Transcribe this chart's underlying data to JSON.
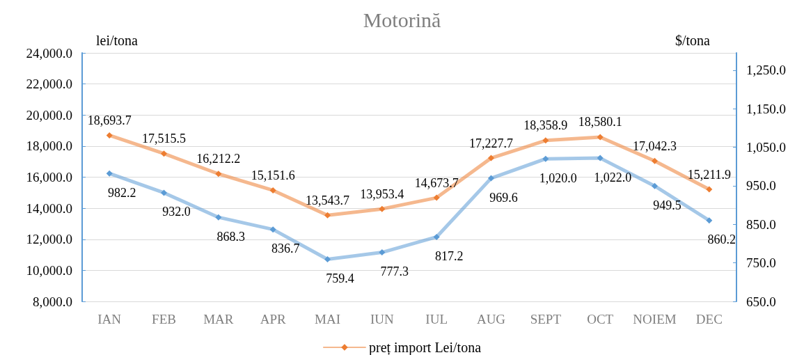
{
  "chart_data": {
    "type": "line",
    "title": "Motorină",
    "ylabel": "lei/tona",
    "y2label": "$/tona",
    "categories": [
      "IAN",
      "FEB",
      "MAR",
      "APR",
      "MAI",
      "IUN",
      "IUL",
      "AUG",
      "SEPT",
      "OCT",
      "NOIEM",
      "DEC"
    ],
    "series": [
      {
        "name": "preț import Lei/tona",
        "color": "#ed7d31",
        "values": [
          18693.7,
          17515.5,
          16212.2,
          15151.6,
          13543.7,
          13953.4,
          14673.7,
          17227.7,
          18358.9,
          18580.1,
          17042.3,
          15211.9
        ],
        "value_labels": [
          "18,693.7",
          "17,515.5",
          "16,212.2",
          "15,151.6",
          "13,543.7",
          "13,953.4",
          "14,673.7",
          "17,227.7",
          "18,358.9",
          "18,580.1",
          "17,042.3",
          "15,211.9"
        ]
      },
      {
        "color": "#5b9bd5",
        "axis": "y2",
        "values": [
          982.2,
          932.0,
          868.3,
          836.7,
          759.4,
          777.3,
          817.2,
          969.6,
          1020.0,
          1022.0,
          949.5,
          860.2
        ],
        "value_labels": [
          "982.2",
          "932.0",
          "868.3",
          "836.7",
          "759.4",
          "777.3",
          "817.2",
          "969.6",
          "1,020.0",
          "1,022.0",
          "949.5",
          "860.2"
        ]
      }
    ],
    "ylim": [
      8000,
      24000
    ],
    "yticks": [
      {
        "value": 8000,
        "label": "8,000.0"
      },
      {
        "value": 10000,
        "label": "10,000.0"
      },
      {
        "value": 12000,
        "label": "12,000.0"
      },
      {
        "value": 14000,
        "label": "14,000.0"
      },
      {
        "value": 16000,
        "label": "16,000.0"
      },
      {
        "value": 18000,
        "label": "18,000.0"
      },
      {
        "value": 20000,
        "label": "20,000.0"
      },
      {
        "value": 22000,
        "label": "22,000.0"
      },
      {
        "value": 24000,
        "label": "24,000.0"
      }
    ],
    "y2lim": [
      650,
      1295
    ],
    "y2ticks": [
      {
        "value": 650,
        "label": "650.0"
      },
      {
        "value": 750,
        "label": "750.0"
      },
      {
        "value": 850,
        "label": "850.0"
      },
      {
        "value": 950,
        "label": "950.0"
      },
      {
        "value": 1050,
        "label": "1,050.0"
      },
      {
        "value": 1150,
        "label": "1,150.0"
      },
      {
        "value": 1250,
        "label": "1,250.0"
      }
    ],
    "grid": "y",
    "legend": "bottom",
    "marker": "diamond",
    "line_style": "solid"
  }
}
